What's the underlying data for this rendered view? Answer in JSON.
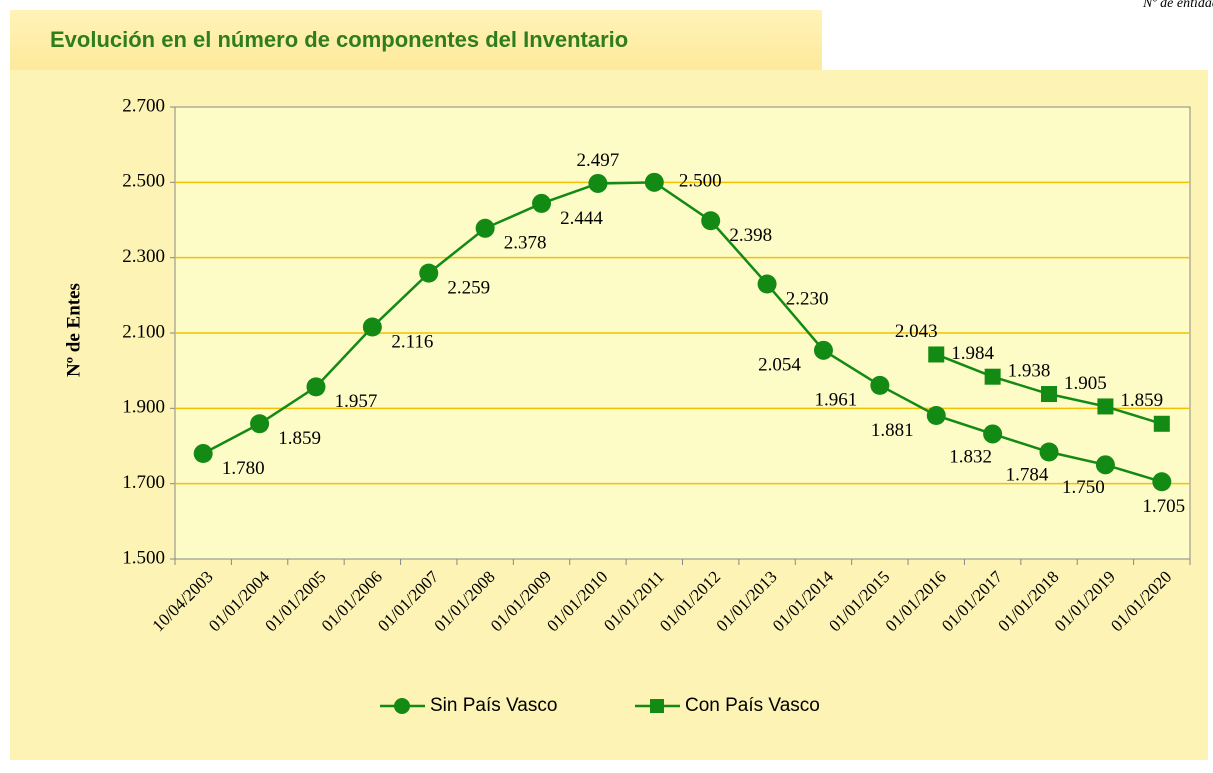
{
  "chart_data": {
    "type": "line",
    "title": "Evolución en el número de componentes del Inventario",
    "note": "Nº de entidades",
    "ylabel": "Nº de Entes",
    "categories": [
      "10/04/2003",
      "01/01/2004",
      "01/01/2005",
      "01/01/2006",
      "01/01/2007",
      "01/01/2008",
      "01/01/2009",
      "01/01/2010",
      "01/01/2011",
      "01/01/2012",
      "01/01/2013",
      "01/01/2014",
      "01/01/2015",
      "01/01/2016",
      "01/01/2017",
      "01/01/2018",
      "01/01/2019",
      "01/01/2020"
    ],
    "series": [
      {
        "name": "Sin País Vasco",
        "color": "#138a13",
        "marker": "circle",
        "values": [
          1780,
          1859,
          1957,
          2116,
          2259,
          2378,
          2444,
          2497,
          2500,
          2398,
          2230,
          2054,
          1961,
          1881,
          1832,
          1784,
          1750,
          1705
        ],
        "value_labels": [
          "1.780",
          "1.859",
          "1.957",
          "2.116",
          "2.259",
          "2.378",
          "2.444",
          "2.497",
          "2.500",
          "2.398",
          "2.230",
          "2.054",
          "1.961",
          "1.881",
          "1.832",
          "1.784",
          "1.750",
          "1.705"
        ]
      },
      {
        "name": "Con País Vasco",
        "color": "#138a13",
        "marker": "square",
        "values": [
          null,
          null,
          null,
          null,
          null,
          null,
          null,
          null,
          null,
          null,
          null,
          null,
          null,
          2043,
          1984,
          1938,
          1905,
          1859
        ],
        "value_labels": [
          null,
          null,
          null,
          null,
          null,
          null,
          null,
          null,
          null,
          null,
          null,
          null,
          null,
          "2.043",
          "1.984",
          "1.938",
          "1.905",
          "1.859"
        ]
      }
    ],
    "ylim": [
      1500,
      2700
    ],
    "yticks": [
      {
        "value": 1500,
        "label": "1.500"
      },
      {
        "value": 1700,
        "label": "1.700"
      },
      {
        "value": 1900,
        "label": "1.900"
      },
      {
        "value": 2100,
        "label": "2.100"
      },
      {
        "value": 2300,
        "label": "2.300"
      },
      {
        "value": 2500,
        "label": "2.500"
      },
      {
        "value": 2700,
        "label": "2.700"
      }
    ],
    "grid": true,
    "legend": "bottom"
  }
}
